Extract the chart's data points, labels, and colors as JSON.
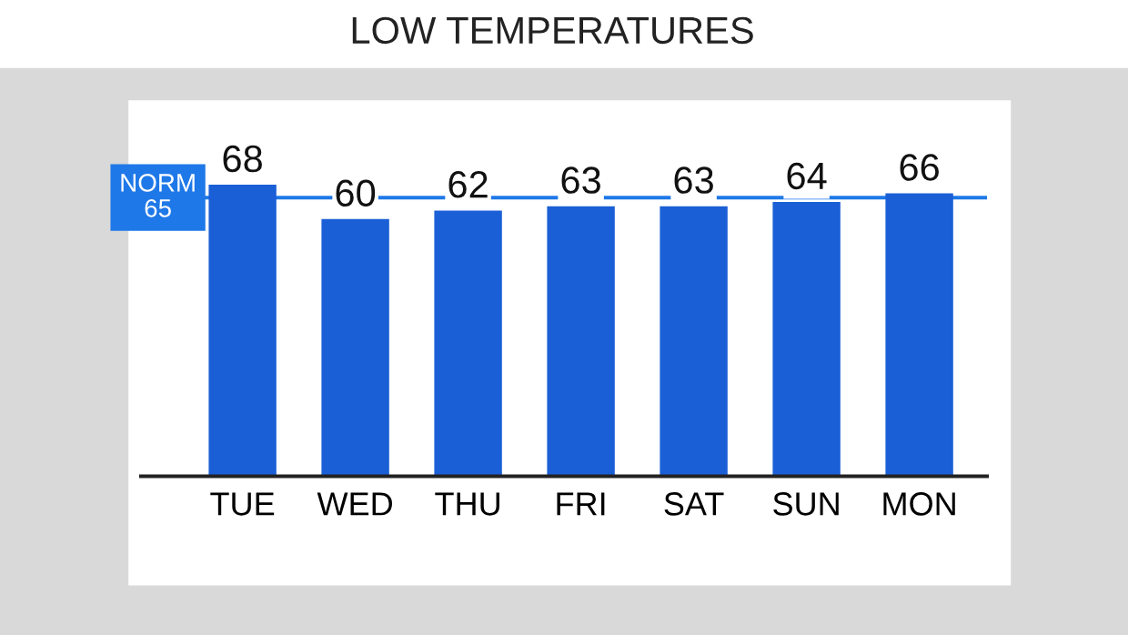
{
  "chart_data": {
    "type": "bar",
    "title": "LOW TEMPERATURES",
    "categories": [
      "TUE",
      "WED",
      "THU",
      "FRI",
      "SAT",
      "SUN",
      "MON"
    ],
    "values": [
      68,
      60,
      62,
      63,
      63,
      64,
      66
    ],
    "color": "#1a5fd6",
    "data_labels": true,
    "ref_lines": [
      {
        "axis": "y",
        "value": 65,
        "label": "NORM\n65",
        "color": "#1f78e8"
      }
    ],
    "grid": false,
    "legend": false
  }
}
